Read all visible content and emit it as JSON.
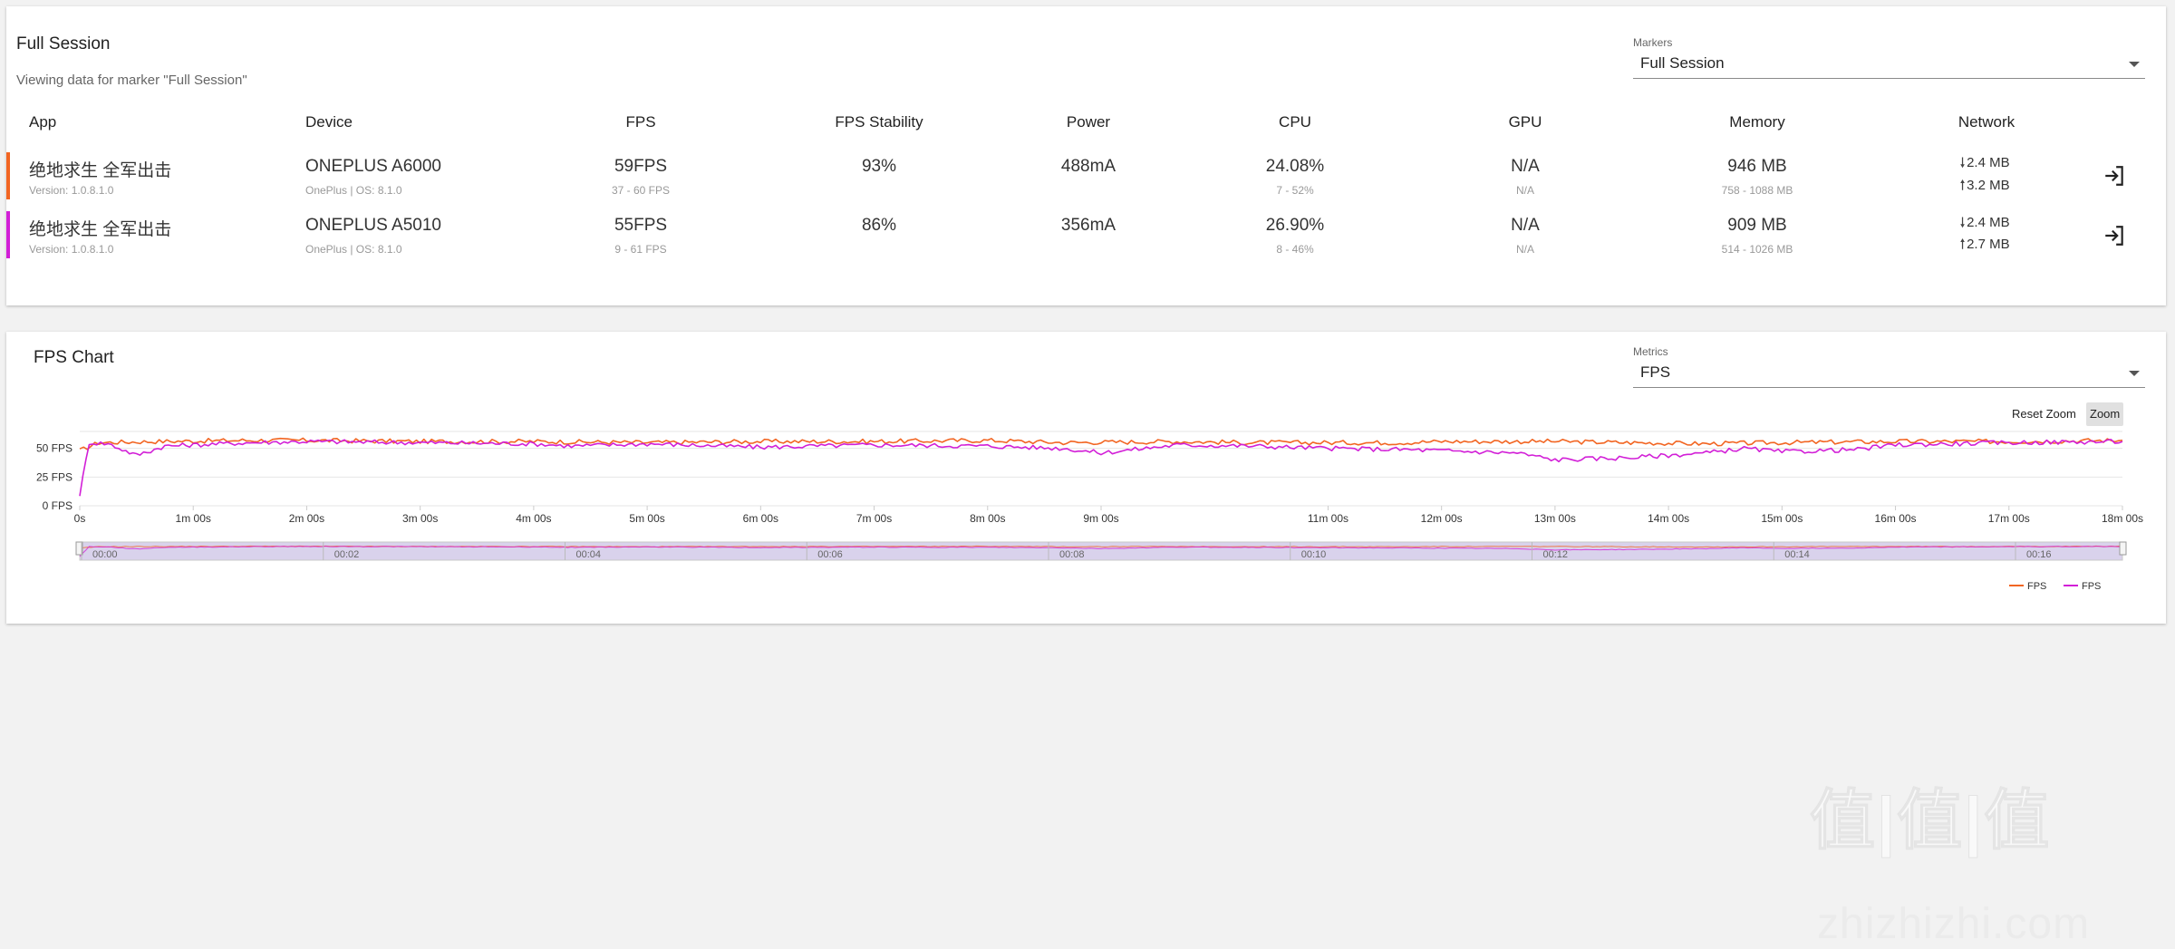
{
  "session": {
    "title": "Full Session",
    "subtitle": "Viewing data for marker \"Full Session\"",
    "markers": {
      "label": "Markers",
      "value": "Full Session"
    },
    "columns": [
      "App",
      "Device",
      "FPS",
      "FPS Stability",
      "Power",
      "CPU",
      "GPU",
      "Memory",
      "Network"
    ],
    "rows": [
      {
        "color": "#f26522",
        "app": "绝地求生 全军出击",
        "version": "Version: 1.0.8.1.0",
        "device": "ONEPLUS A6000",
        "device_sub": "OnePlus | OS: 8.1.0",
        "fps": "59FPS",
        "fps_range": "37 - 60 FPS",
        "stability": "93%",
        "power": "488mA",
        "cpu": "24.08%",
        "cpu_range": "7 - 52%",
        "gpu": "N/A",
        "gpu_sub": "N/A",
        "memory": "946 MB",
        "memory_range": "758 - 1088 MB",
        "net_down": "2.4 MB",
        "net_up": "3.2 MB"
      },
      {
        "color": "#d21fd7",
        "app": "绝地求生 全军出击",
        "version": "Version: 1.0.8.1.0",
        "device": "ONEPLUS A5010",
        "device_sub": "OnePlus | OS: 8.1.0",
        "fps": "55FPS",
        "fps_range": "9 - 61 FPS",
        "stability": "86%",
        "power": "356mA",
        "cpu": "26.90%",
        "cpu_range": "8 - 46%",
        "gpu": "N/A",
        "gpu_sub": "N/A",
        "memory": "909 MB",
        "memory_range": "514 - 1026 MB",
        "net_down": "2.4 MB",
        "net_up": "2.7 MB"
      }
    ]
  },
  "chart_panel": {
    "title": "FPS Chart",
    "metrics": {
      "label": "Metrics",
      "value": "FPS"
    },
    "reset_zoom": "Reset Zoom",
    "zoom": "Zoom",
    "legend": [
      "FPS",
      "FPS"
    ],
    "watermark": "值|值|值",
    "watermark_sub": "zhizhizhi.com"
  },
  "chart_data": {
    "type": "line",
    "y_ticks": [
      "50 FPS",
      "25 FPS",
      "0 FPS"
    ],
    "ylim": [
      0,
      60
    ],
    "x_ticks": [
      {
        "label": "0s",
        "t": 0
      },
      {
        "label": "1m 00s",
        "t": 60
      },
      {
        "label": "2m 00s",
        "t": 120
      },
      {
        "label": "3m 00s",
        "t": 180
      },
      {
        "label": "4m 00s",
        "t": 240
      },
      {
        "label": "5m 00s",
        "t": 300
      },
      {
        "label": "6m 00s",
        "t": 360
      },
      {
        "label": "7m 00s",
        "t": 420
      },
      {
        "label": "8m 00s",
        "t": 480
      },
      {
        "label": "9m 00s",
        "t": 540
      },
      {
        "label": "11m 00s",
        "t": 660
      },
      {
        "label": "12m 00s",
        "t": 720
      },
      {
        "label": "13m 00s",
        "t": 780
      },
      {
        "label": "14m 00s",
        "t": 840
      },
      {
        "label": "15m 00s",
        "t": 900
      },
      {
        "label": "16m 00s",
        "t": 960
      },
      {
        "label": "17m 00s",
        "t": 1020
      },
      {
        "label": "18m 00s",
        "t": 1080
      }
    ],
    "navigator_ticks": [
      "00:00",
      "00:02",
      "00:04",
      "00:06",
      "00:08",
      "00:10",
      "00:12",
      "00:14",
      "00:16"
    ],
    "xlim": [
      0,
      1080
    ],
    "series": [
      {
        "name": "FPS",
        "color": "#f26522",
        "points": [
          [
            0,
            48
          ],
          [
            10,
            55
          ],
          [
            40,
            56
          ],
          [
            90,
            57
          ],
          [
            120,
            57
          ],
          [
            180,
            56
          ],
          [
            240,
            56
          ],
          [
            300,
            55
          ],
          [
            360,
            56
          ],
          [
            420,
            56
          ],
          [
            480,
            57
          ],
          [
            520,
            55
          ],
          [
            580,
            56
          ],
          [
            620,
            55
          ],
          [
            660,
            55
          ],
          [
            700,
            55
          ],
          [
            720,
            56
          ],
          [
            780,
            56
          ],
          [
            820,
            55
          ],
          [
            860,
            54
          ],
          [
            900,
            55
          ],
          [
            960,
            56
          ],
          [
            1020,
            56
          ],
          [
            1080,
            57
          ]
        ]
      },
      {
        "name": "FPS",
        "color": "#d21fd7",
        "points": [
          [
            0,
            10
          ],
          [
            5,
            55
          ],
          [
            15,
            54
          ],
          [
            30,
            44
          ],
          [
            45,
            52
          ],
          [
            60,
            53
          ],
          [
            90,
            55
          ],
          [
            120,
            56
          ],
          [
            180,
            55
          ],
          [
            240,
            54
          ],
          [
            260,
            52
          ],
          [
            300,
            54
          ],
          [
            360,
            51
          ],
          [
            420,
            53
          ],
          [
            480,
            52
          ],
          [
            520,
            50
          ],
          [
            540,
            46
          ],
          [
            580,
            53
          ],
          [
            620,
            52
          ],
          [
            660,
            50
          ],
          [
            700,
            49
          ],
          [
            720,
            48
          ],
          [
            760,
            46
          ],
          [
            780,
            40
          ],
          [
            820,
            42
          ],
          [
            860,
            46
          ],
          [
            880,
            50
          ],
          [
            900,
            47
          ],
          [
            940,
            49
          ],
          [
            960,
            53
          ],
          [
            1020,
            55
          ],
          [
            1080,
            56
          ]
        ]
      }
    ]
  }
}
